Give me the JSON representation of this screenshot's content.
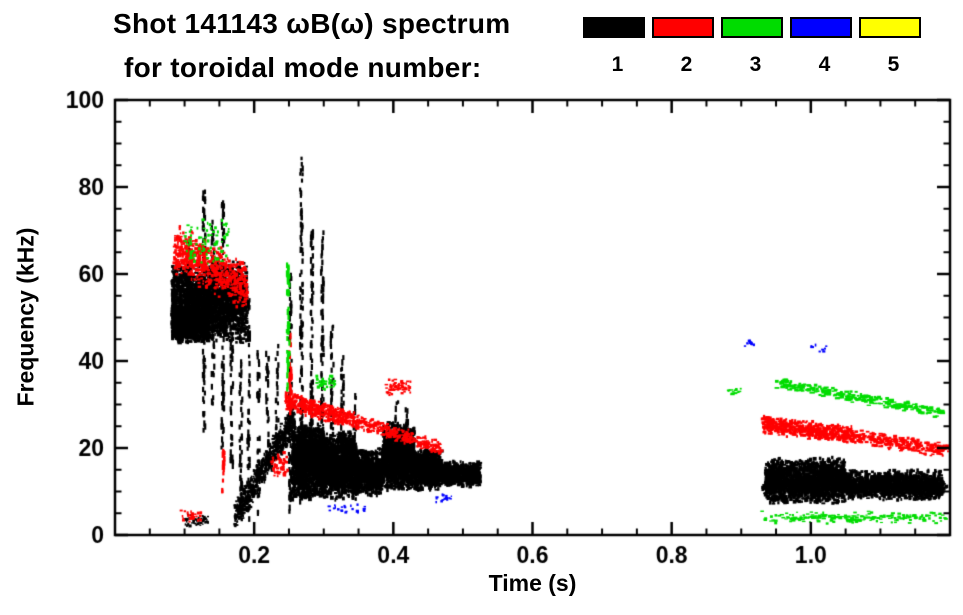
{
  "header": {
    "title": "Shot 141143 ωB(ω) spectrum",
    "subtitle": "for toroidal mode number:",
    "legend": [
      {
        "label": "1",
        "color": "#000000"
      },
      {
        "label": "2",
        "color": "#ff0000"
      },
      {
        "label": "3",
        "color": "#00dc00"
      },
      {
        "label": "4",
        "color": "#0000ff"
      },
      {
        "label": "5",
        "color": "#ffff00"
      }
    ]
  },
  "chart_data": {
    "type": "scatter",
    "subtype": "spectrogram",
    "title": "Shot 141143 ωB(ω) spectrum for toroidal mode number",
    "xlabel": "Time (s)",
    "ylabel": "Frequency (kHz)",
    "xlim": [
      0,
      1.2
    ],
    "ylim": [
      0,
      100
    ],
    "grid": false,
    "legend_position": "top-right",
    "xticks": {
      "major": [
        0.2,
        0.4,
        0.6,
        0.8,
        1.0
      ],
      "labels": [
        "0.2",
        "0.4",
        "0.6",
        "0.8",
        "1.0"
      ],
      "minor_step": 0.05
    },
    "yticks": {
      "major": [
        0,
        20,
        40,
        60,
        80,
        100
      ],
      "labels": [
        "0",
        "20",
        "40",
        "60",
        "80",
        "100"
      ],
      "minor_step": 5
    },
    "mode_colors": {
      "1": "#000000",
      "2": "#ff0000",
      "3": "#00dc00",
      "4": "#0000ff",
      "5": "#ffff00"
    },
    "clusters": [
      {
        "mode": 1,
        "shape": "scatter",
        "t": [
          0.082,
          0.19
        ],
        "f": [
          44,
          63
        ],
        "n": 2600,
        "w": 2.6,
        "h": 2.8
      },
      {
        "mode": 1,
        "shape": "scatter",
        "t": [
          0.082,
          0.135
        ],
        "f": [
          44,
          53
        ],
        "n": 900,
        "w": 3.0,
        "h": 2.6
      },
      {
        "mode": 1,
        "shape": "vline",
        "tc": 0.106,
        "f": [
          46,
          68
        ],
        "n": 40
      },
      {
        "mode": 1,
        "shape": "vline",
        "tc": 0.128,
        "f": [
          22,
          80
        ],
        "n": 90
      },
      {
        "mode": 1,
        "shape": "vline",
        "tc": 0.141,
        "f": [
          30,
          72
        ],
        "n": 60
      },
      {
        "mode": 1,
        "shape": "vline",
        "tc": 0.155,
        "f": [
          20,
          77
        ],
        "n": 80
      },
      {
        "mode": 1,
        "shape": "vline",
        "tc": 0.168,
        "f": [
          14,
          62
        ],
        "n": 55
      },
      {
        "mode": 1,
        "shape": "vline",
        "tc": 0.181,
        "f": [
          4,
          62
        ],
        "n": 70
      },
      {
        "mode": 1,
        "shape": "vline",
        "tc": 0.192,
        "f": [
          3,
          55
        ],
        "n": 50
      },
      {
        "mode": 1,
        "shape": "vline",
        "tc": 0.206,
        "f": [
          4,
          46
        ],
        "n": 40
      },
      {
        "mode": 1,
        "shape": "vline",
        "tc": 0.219,
        "f": [
          16,
          42
        ],
        "n": 30
      },
      {
        "mode": 1,
        "shape": "vline",
        "tc": 0.233,
        "f": [
          20,
          44
        ],
        "n": 26
      },
      {
        "mode": 1,
        "shape": "vline",
        "tc": 0.252,
        "f": [
          5,
          63
        ],
        "n": 70
      },
      {
        "mode": 1,
        "shape": "vline",
        "tc": 0.268,
        "f": [
          6,
          87
        ],
        "n": 110
      },
      {
        "mode": 1,
        "shape": "vline",
        "tc": 0.283,
        "f": [
          8,
          70
        ],
        "n": 85
      },
      {
        "mode": 1,
        "shape": "vline",
        "tc": 0.298,
        "f": [
          8,
          70
        ],
        "n": 85
      },
      {
        "mode": 1,
        "shape": "vline",
        "tc": 0.312,
        "f": [
          8,
          48
        ],
        "n": 45
      },
      {
        "mode": 1,
        "shape": "vline",
        "tc": 0.327,
        "f": [
          8,
          42
        ],
        "n": 40
      },
      {
        "mode": 1,
        "shape": "vline",
        "tc": 0.345,
        "f": [
          8,
          34
        ],
        "n": 26
      },
      {
        "mode": 1,
        "shape": "vline",
        "tc": 0.405,
        "f": [
          12,
          33
        ],
        "n": 30
      },
      {
        "mode": 1,
        "shape": "vline",
        "tc": 0.419,
        "f": [
          12,
          30
        ],
        "n": 24
      },
      {
        "mode": 1,
        "shape": "band",
        "t": [
          0.172,
          0.258
        ],
        "fc": [
          4,
          27
        ],
        "spread": 4,
        "n": 620,
        "w": 2.4,
        "h": 2.6
      },
      {
        "mode": 1,
        "shape": "scatter",
        "t": [
          0.255,
          0.3
        ],
        "f": [
          8,
          26
        ],
        "n": 1400,
        "w": 2.8,
        "h": 3.2
      },
      {
        "mode": 1,
        "shape": "scatter",
        "t": [
          0.3,
          0.345
        ],
        "f": [
          8,
          24
        ],
        "n": 1200,
        "w": 2.8,
        "h": 3.2
      },
      {
        "mode": 1,
        "shape": "scatter",
        "t": [
          0.345,
          0.385
        ],
        "f": [
          9,
          20
        ],
        "n": 900,
        "w": 2.8,
        "h": 3.0
      },
      {
        "mode": 1,
        "shape": "scatter",
        "t": [
          0.385,
          0.43
        ],
        "f": [
          10,
          26
        ],
        "n": 1300,
        "w": 2.8,
        "h": 3.2
      },
      {
        "mode": 1,
        "shape": "scatter",
        "t": [
          0.43,
          0.47
        ],
        "f": [
          10,
          20
        ],
        "n": 1000,
        "w": 2.8,
        "h": 3.0
      },
      {
        "mode": 1,
        "shape": "scatter",
        "t": [
          0.47,
          0.525
        ],
        "f": [
          11,
          17
        ],
        "n": 650,
        "w": 2.8,
        "h": 2.8
      },
      {
        "mode": 1,
        "shape": "scatter",
        "t": [
          0.935,
          1.05
        ],
        "f": [
          7,
          18
        ],
        "n": 1600,
        "w": 2.8,
        "h": 3.0
      },
      {
        "mode": 1,
        "shape": "scatter",
        "t": [
          1.05,
          1.19
        ],
        "f": [
          8,
          15
        ],
        "n": 1300,
        "w": 2.8,
        "h": 2.8
      },
      {
        "mode": 1,
        "shape": "scatter",
        "t": [
          0.93,
          1.195
        ],
        "f": [
          9,
          13
        ],
        "n": 400,
        "w": 2.6,
        "h": 2.4
      },
      {
        "mode": 1,
        "shape": "scatter",
        "t": [
          0.1,
          0.135
        ],
        "f": [
          2,
          5
        ],
        "n": 45,
        "w": 2.2,
        "h": 2.2
      },
      {
        "mode": 2,
        "shape": "band",
        "t": [
          0.085,
          0.19
        ],
        "fc": [
          66,
          57
        ],
        "spread": 6,
        "n": 680,
        "w": 2.4,
        "h": 2.4
      },
      {
        "mode": 2,
        "shape": "vline",
        "tc": 0.252,
        "f": [
          28,
          46
        ],
        "n": 35
      },
      {
        "mode": 2,
        "shape": "vline",
        "tc": 0.156,
        "f": [
          10,
          20
        ],
        "n": 18
      },
      {
        "mode": 2,
        "shape": "scatter",
        "t": [
          0.095,
          0.125
        ],
        "f": [
          3,
          6
        ],
        "n": 30,
        "w": 2.2,
        "h": 2.2
      },
      {
        "mode": 2,
        "shape": "scatter",
        "t": [
          0.225,
          0.248
        ],
        "f": [
          13,
          19
        ],
        "n": 50,
        "w": 2.4,
        "h": 2.4
      },
      {
        "mode": 2,
        "shape": "band",
        "t": [
          0.245,
          0.35
        ],
        "fc": [
          31,
          26
        ],
        "spread": 2.4,
        "n": 420,
        "w": 2.6,
        "h": 2.4
      },
      {
        "mode": 2,
        "shape": "band",
        "t": [
          0.35,
          0.47
        ],
        "fc": [
          26,
          20
        ],
        "spread": 2,
        "n": 280,
        "w": 2.6,
        "h": 2.2
      },
      {
        "mode": 2,
        "shape": "scatter",
        "t": [
          0.39,
          0.425
        ],
        "f": [
          32,
          36
        ],
        "n": 60,
        "w": 2.4,
        "h": 2.2
      },
      {
        "mode": 2,
        "shape": "band",
        "t": [
          0.93,
          1.06
        ],
        "fc": [
          25.5,
          23
        ],
        "spread": 2.2,
        "n": 520,
        "w": 2.8,
        "h": 2.4
      },
      {
        "mode": 2,
        "shape": "band",
        "t": [
          1.06,
          1.19
        ],
        "fc": [
          23,
          19.5
        ],
        "spread": 1.8,
        "n": 270,
        "w": 2.8,
        "h": 2.2
      },
      {
        "mode": 2,
        "shape": "scatter",
        "t": [
          1.185,
          1.2
        ],
        "f": [
          19,
          21
        ],
        "n": 25,
        "w": 2.6,
        "h": 2.2
      },
      {
        "mode": 3,
        "shape": "scatter",
        "t": [
          0.1,
          0.165
        ],
        "f": [
          62,
          73
        ],
        "n": 90,
        "w": 2.2,
        "h": 2.2
      },
      {
        "mode": 3,
        "shape": "vline",
        "tc": 0.249,
        "f": [
          33,
          62
        ],
        "n": 50
      },
      {
        "mode": 3,
        "shape": "scatter",
        "t": [
          0.29,
          0.317
        ],
        "f": [
          33,
          37
        ],
        "n": 40,
        "w": 2.4,
        "h": 2.2
      },
      {
        "mode": 3,
        "shape": "band",
        "t": [
          0.95,
          1.19
        ],
        "fc": [
          35,
          28
        ],
        "spread": 1.4,
        "n": 260,
        "w": 3.6,
        "h": 2.0
      },
      {
        "mode": 3,
        "shape": "scatter",
        "t": [
          0.93,
          1.195
        ],
        "f": [
          2.5,
          5.5
        ],
        "n": 200,
        "w": 3.0,
        "h": 1.8
      },
      {
        "mode": 3,
        "shape": "scatter",
        "t": [
          0.88,
          0.9
        ],
        "f": [
          32,
          34
        ],
        "n": 12,
        "w": 3.0,
        "h": 1.8
      },
      {
        "mode": 4,
        "shape": "scatter",
        "t": [
          0.3,
          0.36
        ],
        "f": [
          4.5,
          8
        ],
        "n": 22,
        "w": 2.2,
        "h": 2.2
      },
      {
        "mode": 4,
        "shape": "scatter",
        "t": [
          0.46,
          0.487
        ],
        "f": [
          7,
          9.5
        ],
        "n": 14,
        "w": 2.2,
        "h": 2.2
      },
      {
        "mode": 4,
        "shape": "scatter",
        "t": [
          0.9,
          0.92
        ],
        "f": [
          43,
          45
        ],
        "n": 10,
        "w": 2.4,
        "h": 2.0
      },
      {
        "mode": 4,
        "shape": "scatter",
        "t": [
          1.0,
          1.025
        ],
        "f": [
          42,
          44
        ],
        "n": 8,
        "w": 2.4,
        "h": 2.0
      }
    ]
  }
}
